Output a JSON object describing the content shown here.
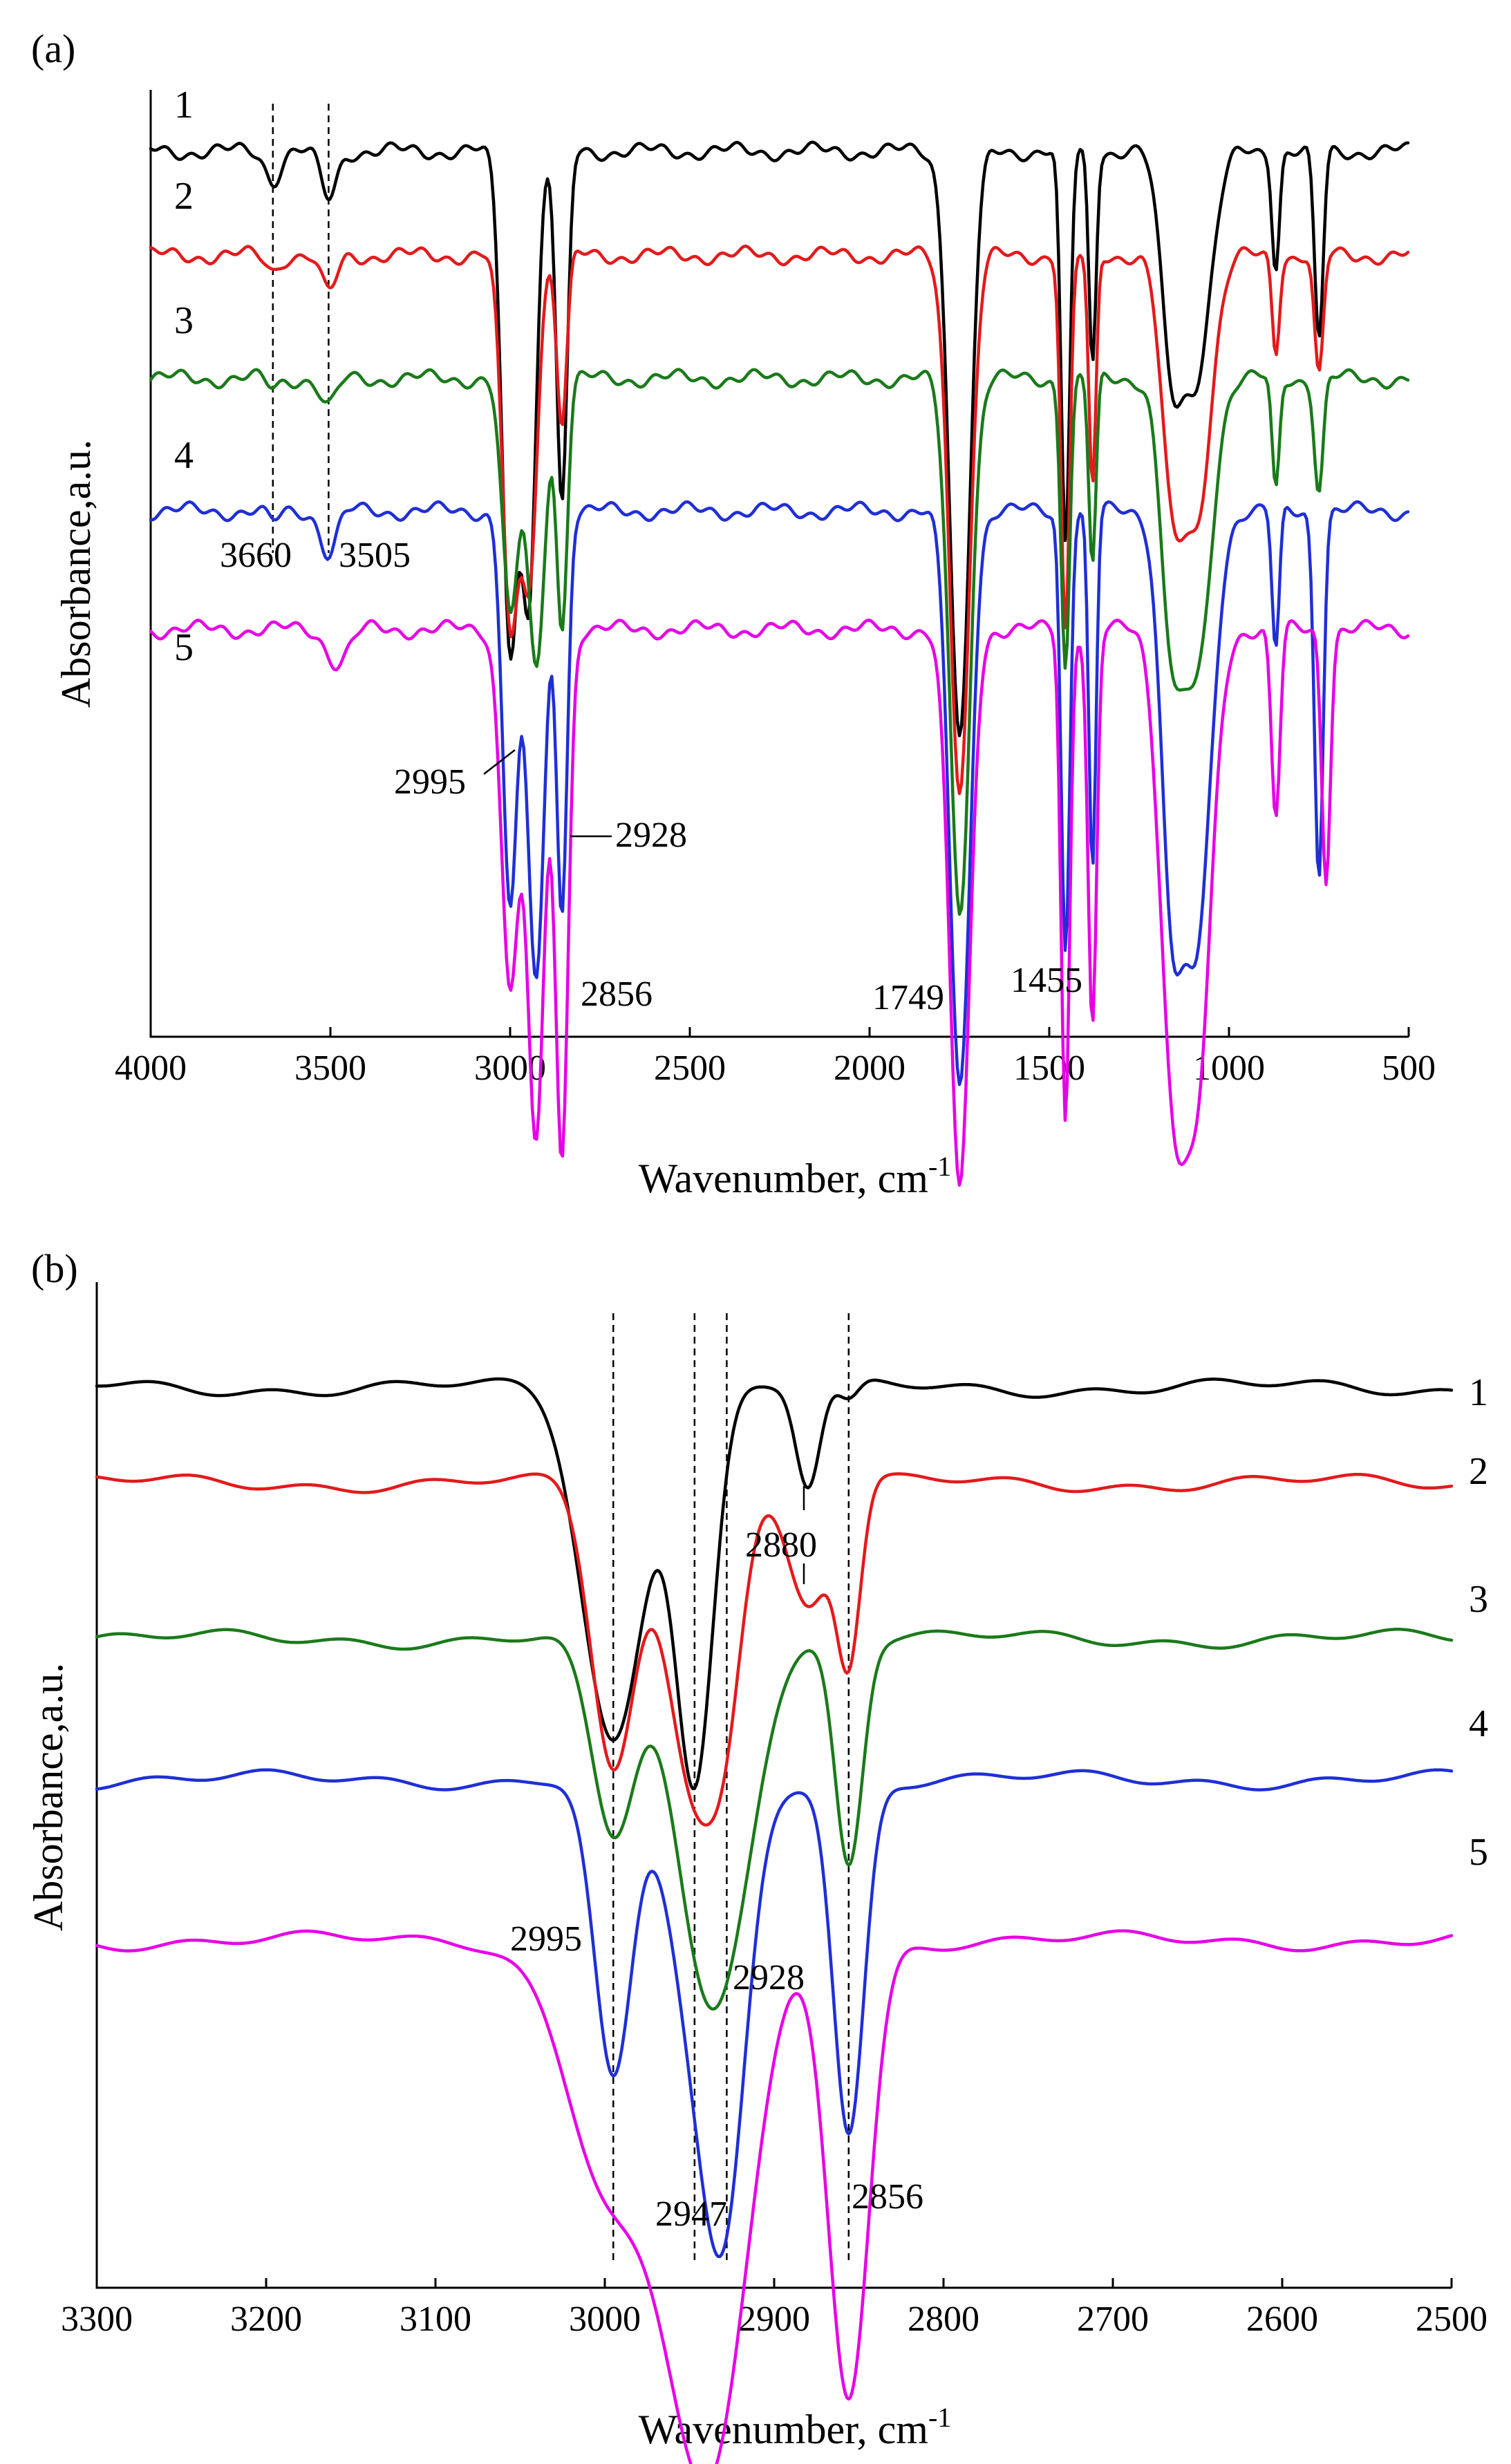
{
  "chart_data": [
    {
      "panel": "(a)",
      "type": "line",
      "xlabel": "Wavenumber, cm",
      "xlabel_sup": "-1",
      "ylabel": "Absorbance,a.u.",
      "xlim": [
        4000,
        500
      ],
      "x_ticks": [
        4000,
        3500,
        3000,
        2500,
        2000,
        1500,
        1000,
        500
      ],
      "series": [
        {
          "name": "1",
          "color": "#000000",
          "baseline": 0.935,
          "bumps": [
            [
              3660,
              0.03,
              20
            ],
            [
              3505,
              0.05,
              22
            ],
            [
              3000,
              0.52,
              22
            ],
            [
              2947,
              0.45,
              20
            ],
            [
              2856,
              0.38,
              15
            ],
            [
              1749,
              0.62,
              28
            ],
            [
              1455,
              0.42,
              12
            ],
            [
              1380,
              0.22,
              10
            ],
            [
              1160,
              0.2,
              30
            ],
            [
              1090,
              0.23,
              40
            ],
            [
              870,
              0.12,
              10
            ],
            [
              750,
              0.2,
              12
            ]
          ]
        },
        {
          "name": "2",
          "color": "#e31a1c",
          "baseline": 0.825,
          "bumps": [
            [
              3660,
              0.015,
              18
            ],
            [
              3505,
              0.04,
              22
            ],
            [
              3000,
              0.38,
              22
            ],
            [
              2947,
              0.33,
              22
            ],
            [
              2856,
              0.18,
              14
            ],
            [
              1749,
              0.56,
              28
            ],
            [
              1455,
              0.4,
              12
            ],
            [
              1380,
              0.25,
              10
            ],
            [
              1160,
              0.22,
              30
            ],
            [
              1090,
              0.27,
              40
            ],
            [
              870,
              0.1,
              10
            ],
            [
              750,
              0.13,
              12
            ]
          ]
        },
        {
          "name": "3",
          "color": "#1a7a1a",
          "baseline": 0.695,
          "bumps": [
            [
              3660,
              0.01,
              18
            ],
            [
              3505,
              0.03,
              22
            ],
            [
              3000,
              0.25,
              22
            ],
            [
              2928,
              0.3,
              24
            ],
            [
              2856,
              0.26,
              15
            ],
            [
              1749,
              0.56,
              28
            ],
            [
              1455,
              0.3,
              12
            ],
            [
              1380,
              0.2,
              10
            ],
            [
              1160,
              0.25,
              30
            ],
            [
              1090,
              0.3,
              40
            ],
            [
              870,
              0.12,
              10
            ],
            [
              750,
              0.12,
              12
            ]
          ]
        },
        {
          "name": "4",
          "color": "#1f2fd6",
          "baseline": 0.555,
          "bumps": [
            [
              3660,
              0.012,
              18
            ],
            [
              3505,
              0.045,
              22
            ],
            [
              3000,
              0.42,
              20
            ],
            [
              2928,
              0.5,
              24
            ],
            [
              2856,
              0.42,
              15
            ],
            [
              1749,
              0.61,
              28
            ],
            [
              1455,
              0.46,
              12
            ],
            [
              1380,
              0.38,
              10
            ],
            [
              1160,
              0.36,
              30
            ],
            [
              1090,
              0.45,
              40
            ],
            [
              870,
              0.15,
              10
            ],
            [
              750,
              0.38,
              12
            ]
          ]
        },
        {
          "name": "5",
          "color": "#e600e6",
          "baseline": 0.43,
          "bumps": [
            [
              3480,
              0.035,
              30
            ],
            [
              3000,
              0.37,
              24
            ],
            [
              2928,
              0.54,
              24
            ],
            [
              2856,
              0.55,
              18
            ],
            [
              1749,
              0.59,
              28
            ],
            [
              1455,
              0.52,
              12
            ],
            [
              1380,
              0.42,
              12
            ],
            [
              1160,
              0.4,
              34
            ],
            [
              1090,
              0.48,
              40
            ],
            [
              870,
              0.2,
              12
            ],
            [
              730,
              0.26,
              12
            ]
          ]
        }
      ],
      "guide_lines": [
        3660,
        3505
      ],
      "annotations": [
        "3660",
        "3505",
        "2995",
        "2928",
        "2856",
        "1749",
        "1455"
      ]
    },
    {
      "panel": "(b)",
      "type": "line",
      "xlabel": "Wavenumber, cm",
      "xlabel_sup": "-1",
      "ylabel": "Absorbance,a.u.",
      "xlim": [
        3300,
        2500
      ],
      "x_ticks": [
        3300,
        3200,
        3100,
        3000,
        2900,
        2800,
        2700,
        2600,
        2500
      ],
      "series": [
        {
          "name": "1",
          "color": "#000000",
          "baseline": 0.895,
          "bumps": [
            [
              2995,
              0.35,
              18
            ],
            [
              2947,
              0.38,
              11
            ],
            [
              2880,
              0.1,
              7
            ],
            [
              2856,
              0.02,
              6
            ]
          ]
        },
        {
          "name": "2",
          "color": "#e31a1c",
          "baseline": 0.8,
          "bumps": [
            [
              2995,
              0.28,
              13
            ],
            [
              2947,
              0.3,
              16
            ],
            [
              2928,
              0.12,
              10
            ],
            [
              2880,
              0.12,
              12
            ],
            [
              2856,
              0.17,
              7
            ]
          ]
        },
        {
          "name": "3",
          "color": "#1a7a1a",
          "baseline": 0.645,
          "bumps": [
            [
              2995,
              0.2,
              13
            ],
            [
              2947,
              0.18,
              16
            ],
            [
              2928,
              0.25,
              18
            ],
            [
              2856,
              0.22,
              8
            ]
          ]
        },
        {
          "name": "4",
          "color": "#1f2fd6",
          "baseline": 0.505,
          "bumps": [
            [
              2995,
              0.3,
              11
            ],
            [
              2940,
              0.3,
              18
            ],
            [
              2928,
              0.22,
              12
            ],
            [
              2856,
              0.35,
              9
            ]
          ]
        },
        {
          "name": "5",
          "color": "#e600e6",
          "baseline": 0.345,
          "bumps": [
            [
              3000,
              0.22,
              24
            ],
            [
              2947,
              0.4,
              24
            ],
            [
              2928,
              0.18,
              20
            ],
            [
              2856,
              0.45,
              12
            ]
          ]
        }
      ],
      "guide_lines": [
        2995,
        2947,
        2928,
        2856
      ],
      "annotations": [
        "2880",
        "2995",
        "2928",
        "2947",
        "2856"
      ]
    }
  ]
}
